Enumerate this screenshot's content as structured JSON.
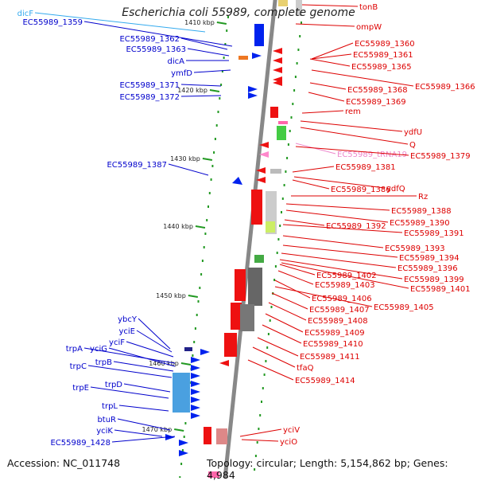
{
  "title": "Escherichia coli 55989, complete genome",
  "footer": {
    "accession": "Accession: NC_011748",
    "topology": "Topology: circular; Length: 5,154,862 bp; Genes: 4,984"
  },
  "colors": {
    "left_label": "#0000cc",
    "right_label": "#dd0000",
    "light_blue_label": "#33aaee",
    "pink_label": "#ee88cc",
    "backbone": "#888888",
    "tick": "#229922",
    "forward_feature": "#0022ee",
    "reverse_feature": "#ee1111"
  },
  "scale_labels": [
    "1410 kbp",
    "1420 kbp",
    "1430 kbp",
    "1440 kbp",
    "1450 kbp",
    "1460 kbp",
    "1470 kbp"
  ],
  "left_labels": [
    "dicF",
    "EC55989_1359",
    "EC55989_1362",
    "EC55989_1363",
    "dicA",
    "ymfD",
    "EC55989_1371",
    "EC55989_1372",
    "EC55989_1387",
    "ybcY",
    "yciE",
    "yciF",
    "trpA",
    "yciG",
    "trpB",
    "trpC",
    "trpD",
    "trpE",
    "trpL",
    "btuR",
    "yciK",
    "EC55989_1428"
  ],
  "right_labels": [
    "tonB",
    "ompW",
    "EC55989_1360",
    "EC55989_1361",
    "EC55989_1365",
    "EC55989_1366",
    "EC55989_1368",
    "EC55989_1369",
    "rem",
    "ydfU",
    "Q",
    "EC55989_tRNA19",
    "EC55989_1379",
    "EC55989_1381",
    "EC55989_1386",
    "ydfQ",
    "Rz",
    "EC55989_1388",
    "EC55989_1390",
    "EC55989_1392",
    "EC55989_1391",
    "EC55989_1393",
    "EC55989_1394",
    "EC55989_1396",
    "EC55989_1402",
    "EC55989_1399",
    "EC55989_1403",
    "EC55989_1401",
    "EC55989_1406",
    "EC55989_1405",
    "EC55989_1407",
    "EC55989_1408",
    "EC55989_1409",
    "EC55989_1410",
    "EC55989_1411",
    "tfaQ",
    "EC55989_1414",
    "yciV",
    "yciO"
  ]
}
